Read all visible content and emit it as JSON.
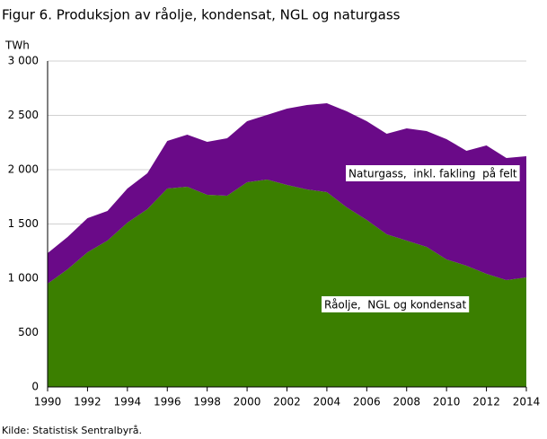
{
  "chart_data": {
    "type": "stacked_area",
    "title": "Figur 6. Produksjon av råolje, kondensat, NGL og naturgass",
    "y_label": "TWh",
    "source": "Kilde: Statistisk Sentralbyrå.",
    "x": [
      1990,
      1991,
      1992,
      1993,
      1994,
      1995,
      1996,
      1997,
      1998,
      1999,
      2000,
      2001,
      2002,
      2003,
      2004,
      2005,
      2006,
      2007,
      2008,
      2009,
      2010,
      2011,
      2012,
      2013,
      2014
    ],
    "series": [
      {
        "name": "Råolje,  NGL og kondensat",
        "color": "#3b7f00",
        "values": [
          950,
          1083,
          1240,
          1347,
          1512,
          1636,
          1826,
          1843,
          1769,
          1760,
          1884,
          1909,
          1860,
          1818,
          1793,
          1653,
          1537,
          1405,
          1347,
          1289,
          1174,
          1116,
          1041,
          983,
          1008
        ]
      },
      {
        "name": "Naturgass,  inkl. fakling  på felt",
        "color": "#6a0a88",
        "values": [
          281,
          297,
          314,
          273,
          314,
          331,
          438,
          479,
          487,
          529,
          562,
          595,
          702,
          777,
          819,
          884,
          909,
          926,
          1033,
          1066,
          1107,
          1058,
          1182,
          1124,
          1116
        ]
      }
    ],
    "xlim": [
      1990,
      2014
    ],
    "xticks": [
      1990,
      1992,
      1994,
      1996,
      1998,
      2000,
      2002,
      2004,
      2006,
      2008,
      2010,
      2012,
      2014
    ],
    "ylim": [
      0,
      3000
    ],
    "yticks": [
      0,
      500,
      {
        "value": 1000,
        "label": "1 000"
      },
      {
        "value": 1500,
        "label": "1 500"
      },
      {
        "value": 2000,
        "label": "2 000"
      },
      {
        "value": 2500,
        "label": "2 500"
      },
      {
        "value": 3000,
        "label": "3 000"
      }
    ],
    "grid": true
  }
}
